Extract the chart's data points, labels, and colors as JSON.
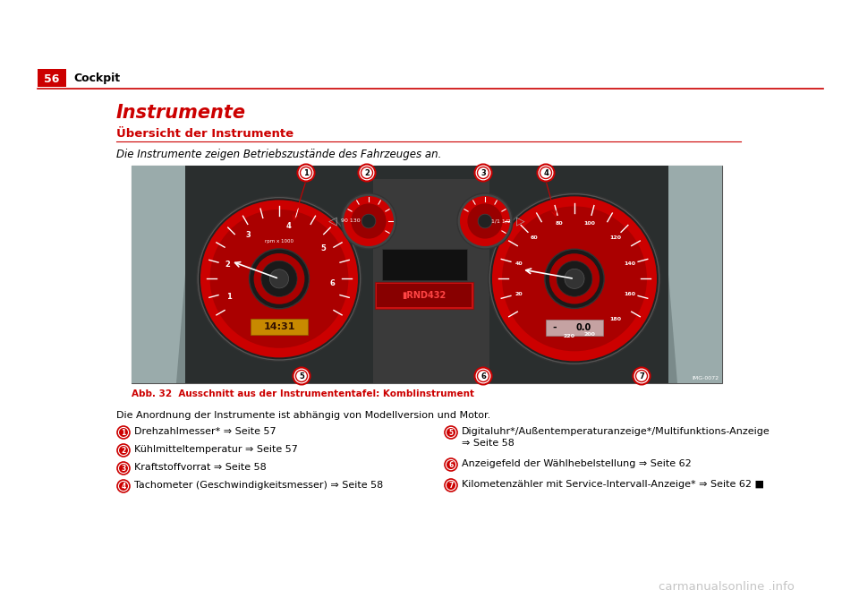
{
  "bg_color": "#ffffff",
  "page_number": "56",
  "page_header_text": "Cockpit",
  "header_bar_color": "#cc0000",
  "header_line_color": "#cc0000",
  "title": "Instrumente",
  "title_color": "#cc0000",
  "subtitle": "Übersicht der Instrumente",
  "subtitle_color": "#cc0000",
  "subtitle_line_color": "#cc0000",
  "intro_text": "Die Instrumente zeigen Betriebszustände des Fahrzeuges an.",
  "caption_text": "Abb. 32  Ausschnitt aus der Instrumententafel: Komblinstrument",
  "caption_color": "#cc0000",
  "body_intro": "Die Anordnung der Instrumente ist abhängig von Modellversion und Motor.",
  "items_left": [
    {
      "num": "1",
      "text": "Drehzahlmesser* ⇒ Seite 57"
    },
    {
      "num": "2",
      "text": "Kühlmitteltemperatur ⇒ Seite 57"
    },
    {
      "num": "3",
      "text": "Kraftstoffvorrat ⇒ Seite 58"
    },
    {
      "num": "4",
      "text": "Tachometer (Geschwindigkeitsmesser) ⇒ Seite 58"
    }
  ],
  "items_right": [
    {
      "num": "5",
      "text": "Digitaluhr*/Außentemperaturanzeige*/Multifunktions-Anzeige\n⇒ Seite 58"
    },
    {
      "num": "6",
      "text": "Anzeigefeld der Wählhebelstellung ⇒ Seite 62"
    },
    {
      "num": "7",
      "text": "Kilometenzähler mit Service-Intervall-Anzeige* ⇒ Seite 62 ■"
    }
  ],
  "watermark": "carmanualsonline .info",
  "item_circle_color": "#cc0000",
  "dash_bg": "#7a8a8a",
  "dash_dark": "#3a4040",
  "dash_darker": "#2a2e2e",
  "gauge_red": "#cc0000",
  "gauge_dark_ring": "#1a1a1a",
  "gauge_mid_ring": "#333333",
  "display_bg": "#2a2a2a",
  "display_orange": "#e8a000",
  "display_red": "#cc2222",
  "num_circle_outer": "#cc0000",
  "num_circle_inner_bg": "#ffffff",
  "ref_text": "IMG-0072"
}
